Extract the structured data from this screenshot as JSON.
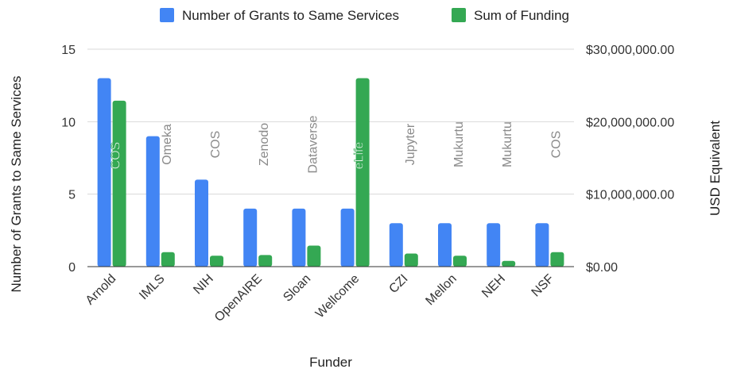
{
  "chart_data": {
    "type": "bar",
    "title": "",
    "xlabel": "Funder",
    "ylabel_left": "Number of Grants to Same Services",
    "ylabel_right": "USD Equivalent",
    "categories": [
      "Arnold",
      "IMLS",
      "NIH",
      "OpenAIRE",
      "Sloan",
      "Wellcome",
      "CZI",
      "Mellon",
      "NEH",
      "NSF"
    ],
    "series": [
      {
        "name": "Number of Grants to Same Services",
        "axis": "left",
        "color": "#4285f4",
        "values": [
          13,
          9,
          6,
          4,
          4,
          4,
          3,
          3,
          3,
          3
        ]
      },
      {
        "name": "Sum of Funding",
        "axis": "right",
        "color": "#34a853",
        "values": [
          22900000,
          2000000,
          1500000,
          1600000,
          2900000,
          26000000,
          1800000,
          1500000,
          800000,
          2000000
        ]
      }
    ],
    "annotations": [
      "COS",
      "Omeka",
      "COS",
      "Zenodo",
      "Dataverse",
      "eLife",
      "Jupyter",
      "Mukurtu",
      "Mukurtu",
      "COS"
    ],
    "yaxis_left": {
      "min": 0,
      "max": 15,
      "ticks": [
        0,
        5,
        10,
        15
      ],
      "tick_labels": [
        "0",
        "5",
        "10",
        "15"
      ]
    },
    "yaxis_right": {
      "min": 0,
      "max": 30000000,
      "ticks": [
        0,
        10000000,
        20000000,
        30000000
      ],
      "tick_labels": [
        "$0.00",
        "$10,000,000.00",
        "$20,000,000.00",
        "$30,000,000.00"
      ]
    },
    "grid": true,
    "legend": "top"
  }
}
